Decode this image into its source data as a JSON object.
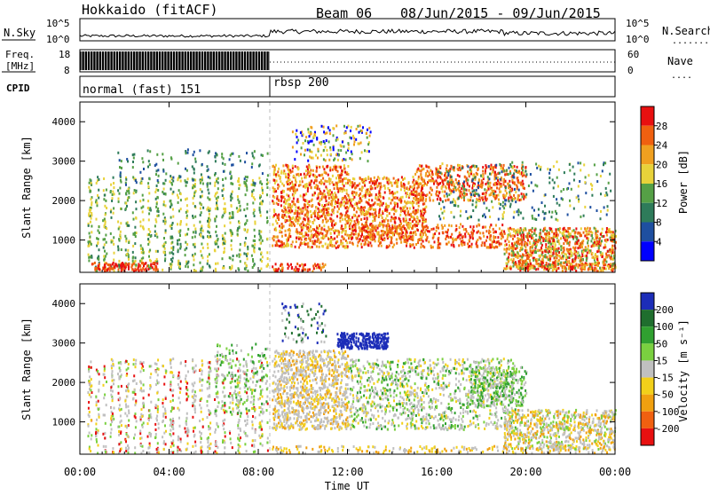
{
  "header": {
    "station": "Hokkaido (fitACF)",
    "beam": "Beam 06",
    "date_range": "08/Jun/2015 - 09/Jun/2015"
  },
  "noise_panel": {
    "left_label": "N.Sky",
    "right_label": "N.Search",
    "left_ticks": [
      "10^5",
      "10^0"
    ],
    "right_ticks": [
      "10^5",
      "10^0"
    ]
  },
  "freq_panel": {
    "left_label_line1": "Freq.",
    "left_label_line2": "[MHz]",
    "right_label": "Nave",
    "left_ticks": [
      "18",
      "8"
    ],
    "right_ticks": [
      "60",
      "0"
    ]
  },
  "cpid_panel": {
    "label": "CPID",
    "programs": [
      {
        "name": "normal (fast) 151",
        "start_hour": 0
      },
      {
        "name": "rbsp 200",
        "start_hour": 8.5
      }
    ]
  },
  "colors": {
    "power": [
      "#0000ff",
      "#1e4fa0",
      "#2e7b5a",
      "#55a046",
      "#e8d23a",
      "#f0a020",
      "#f06010",
      "#e81010"
    ],
    "velocity": [
      "#1c2db8",
      "#1f6e2e",
      "#30a030",
      "#7ad040",
      "#c0c0c0",
      "#f2d01a",
      "#f0a010",
      "#f06010",
      "#e81010"
    ]
  },
  "chart_data": [
    {
      "type": "heatmap",
      "name": "power",
      "ylabel": "Slant Range [km]",
      "x_range_hours": [
        0,
        24
      ],
      "ylim": [
        180,
        4500
      ],
      "y_ticks": [
        1000,
        2000,
        3000,
        4000
      ],
      "colorbar_label": "Power [dB]",
      "colorbar_ticks": [
        4,
        8,
        12,
        16,
        20,
        24,
        28
      ],
      "colorbar_range": [
        0,
        32
      ],
      "program_boundary_hour": 8.5
    },
    {
      "type": "heatmap",
      "name": "velocity",
      "ylabel": "Slant Range [km]",
      "xlabel": "Time UT",
      "x_range_hours": [
        0,
        24
      ],
      "x_ticks": [
        "00:00",
        "04:00",
        "08:00",
        "12:00",
        "16:00",
        "20:00",
        "00:00"
      ],
      "ylim": [
        180,
        4500
      ],
      "y_ticks": [
        1000,
        2000,
        3000,
        4000
      ],
      "colorbar_label": "Velocity [m s⁻¹]",
      "colorbar_ticks": [
        "200",
        "100",
        "50",
        "15",
        "-15",
        "-50",
        "-100",
        "-200"
      ],
      "program_boundary_hour": 8.5
    }
  ]
}
